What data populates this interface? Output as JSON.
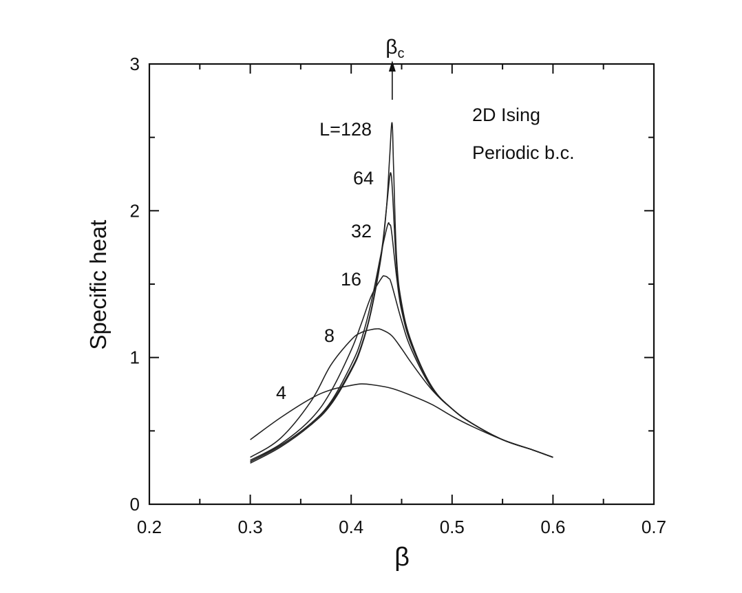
{
  "chart_data": {
    "type": "line",
    "xlabel": "β",
    "ylabel": "Specific heat",
    "xlim": [
      0.2,
      0.7
    ],
    "ylim": [
      0,
      3
    ],
    "x_ticks": [
      "0.2",
      "0.3",
      "0.4",
      "0.5",
      "0.6",
      "0.7"
    ],
    "y_ticks": [
      "0",
      "1",
      "2",
      "3"
    ],
    "grid": false,
    "annotations": {
      "critical_marker": {
        "base": "β",
        "subscript": "c",
        "x": 0.4407
      },
      "model": "2D Ising",
      "boundary": "Periodic b.c."
    },
    "series": [
      {
        "name": "4",
        "x": [
          0.3,
          0.33,
          0.36,
          0.38,
          0.4,
          0.41,
          0.42,
          0.44,
          0.46,
          0.48,
          0.5,
          0.52,
          0.55,
          0.58,
          0.6
        ],
        "y": [
          0.44,
          0.59,
          0.72,
          0.78,
          0.81,
          0.82,
          0.815,
          0.79,
          0.74,
          0.68,
          0.6,
          0.53,
          0.44,
          0.37,
          0.32
        ]
      },
      {
        "name": "8",
        "x": [
          0.3,
          0.33,
          0.36,
          0.38,
          0.4,
          0.41,
          0.42,
          0.425,
          0.43,
          0.44,
          0.45,
          0.46,
          0.48,
          0.5,
          0.52,
          0.55,
          0.58,
          0.6
        ],
        "y": [
          0.32,
          0.45,
          0.7,
          0.95,
          1.12,
          1.17,
          1.19,
          1.195,
          1.19,
          1.15,
          1.06,
          0.96,
          0.78,
          0.65,
          0.55,
          0.44,
          0.37,
          0.32
        ]
      },
      {
        "name": "16",
        "x": [
          0.3,
          0.33,
          0.36,
          0.38,
          0.4,
          0.41,
          0.42,
          0.43,
          0.433,
          0.437,
          0.44,
          0.45,
          0.46,
          0.48,
          0.5,
          0.52,
          0.55,
          0.58,
          0.6
        ],
        "y": [
          0.3,
          0.41,
          0.58,
          0.77,
          1.05,
          1.23,
          1.42,
          1.54,
          1.555,
          1.54,
          1.5,
          1.25,
          1.05,
          0.79,
          0.65,
          0.55,
          0.44,
          0.37,
          0.32
        ]
      },
      {
        "name": "32",
        "x": [
          0.3,
          0.33,
          0.36,
          0.38,
          0.4,
          0.41,
          0.42,
          0.43,
          0.436,
          0.438,
          0.44,
          0.445,
          0.45,
          0.46,
          0.48,
          0.5,
          0.52,
          0.55,
          0.58,
          0.6
        ],
        "y": [
          0.29,
          0.4,
          0.55,
          0.7,
          0.95,
          1.12,
          1.38,
          1.72,
          1.9,
          1.905,
          1.86,
          1.55,
          1.32,
          1.08,
          0.8,
          0.65,
          0.55,
          0.44,
          0.37,
          0.32
        ]
      },
      {
        "name": "64",
        "x": [
          0.3,
          0.33,
          0.36,
          0.38,
          0.4,
          0.41,
          0.42,
          0.43,
          0.435,
          0.438,
          0.4395,
          0.441,
          0.445,
          0.45,
          0.46,
          0.48,
          0.5,
          0.52,
          0.55,
          0.58,
          0.6
        ],
        "y": [
          0.29,
          0.4,
          0.55,
          0.69,
          0.92,
          1.08,
          1.33,
          1.72,
          2.02,
          2.22,
          2.25,
          2.12,
          1.62,
          1.35,
          1.09,
          0.8,
          0.65,
          0.55,
          0.44,
          0.37,
          0.32
        ]
      },
      {
        "name": "L=128",
        "x": [
          0.3,
          0.33,
          0.36,
          0.38,
          0.4,
          0.41,
          0.42,
          0.43,
          0.435,
          0.438,
          0.4405,
          0.442,
          0.445,
          0.45,
          0.46,
          0.48,
          0.5,
          0.52,
          0.55,
          0.58,
          0.6
        ],
        "y": [
          0.28,
          0.39,
          0.54,
          0.68,
          0.91,
          1.07,
          1.32,
          1.7,
          2.02,
          2.35,
          2.6,
          2.3,
          1.68,
          1.37,
          1.1,
          0.8,
          0.65,
          0.55,
          0.44,
          0.37,
          0.32
        ]
      }
    ]
  }
}
